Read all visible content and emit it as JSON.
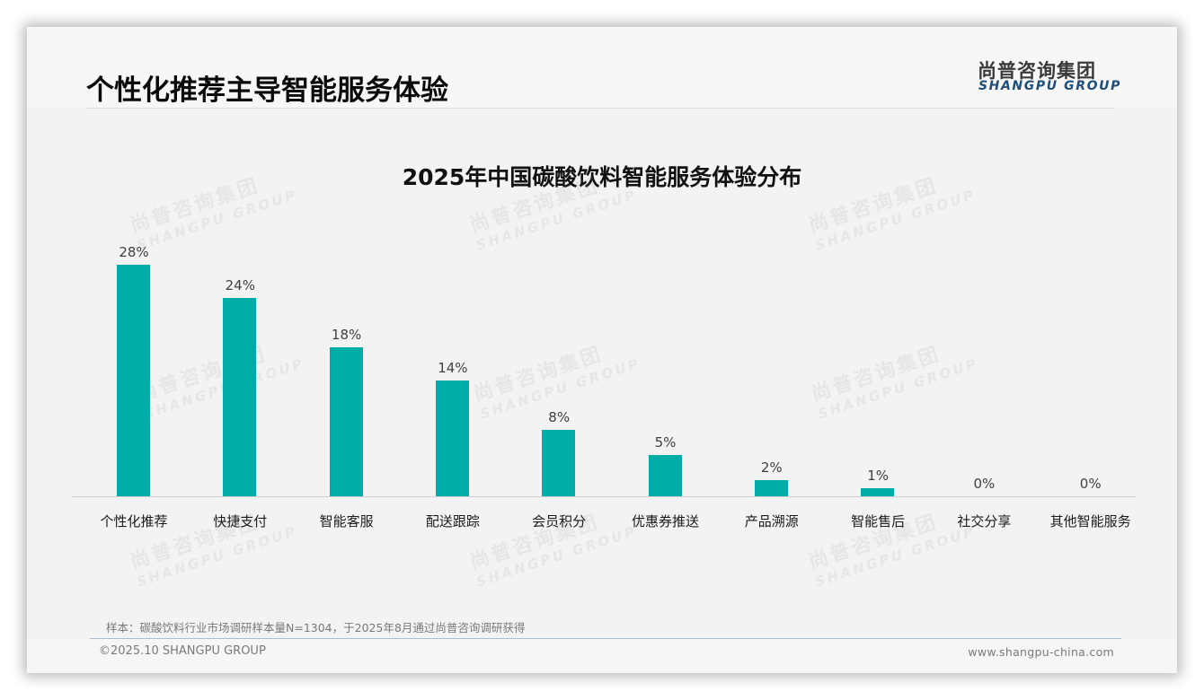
{
  "page": {
    "title": "个性化推荐主导智能服务体验",
    "logo": {
      "cn": "尚普咨询集团",
      "en": "SHANGPU GROUP"
    },
    "watermark": {
      "cn": "尚普咨询集团",
      "en": "SHANGPU GROUP"
    },
    "note": "样本：碳酸饮料行业市场调研样本量N=1304，于2025年8月通过尚普咨询调研获得",
    "footer": {
      "copyright": "©2025.10 SHANGPU GROUP",
      "website": "www.shangpu-china.com"
    },
    "colors": {
      "bar": "#00ada6",
      "logo_en": "#1f4e79",
      "background": "#f3f3f3"
    }
  },
  "chart_data": {
    "type": "bar",
    "title": "2025年中国碳酸饮料智能服务体验分布",
    "xlabel": "",
    "ylabel": "",
    "ylim": [
      0,
      30
    ],
    "grid": false,
    "legend": null,
    "categories": [
      "个性化推荐",
      "快捷支付",
      "智能客服",
      "配送跟踪",
      "会员积分",
      "优惠券推送",
      "产品溯源",
      "智能售后",
      "社交分享",
      "其他智能服务"
    ],
    "values": [
      28,
      24,
      18,
      14,
      8,
      5,
      2,
      1,
      0,
      0
    ],
    "value_labels": [
      "28%",
      "24%",
      "18%",
      "14%",
      "8%",
      "5%",
      "2%",
      "1%",
      "0%",
      "0%"
    ],
    "unit": "%"
  }
}
